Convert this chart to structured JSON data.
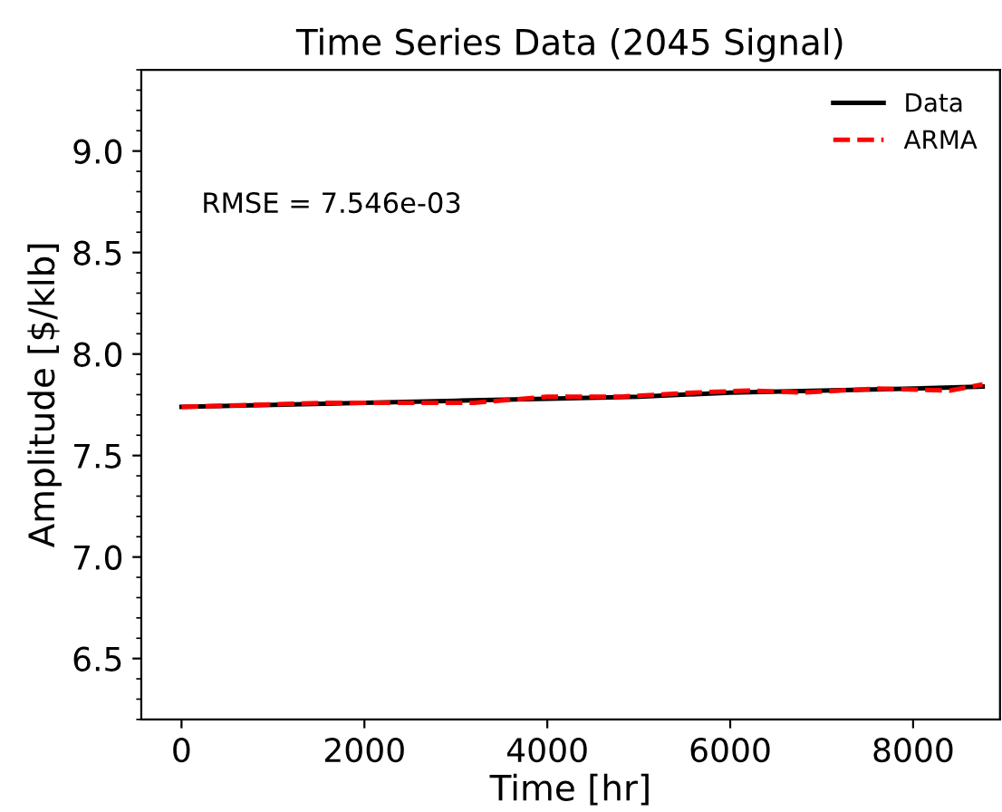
{
  "chart_data": {
    "type": "line",
    "title": "Time Series Data (2045 Signal)",
    "xlabel": "Time [hr]",
    "ylabel": "Amplitude [$/klb]",
    "xlim": [
      -440,
      8950
    ],
    "ylim": [
      6.2,
      9.4
    ],
    "xticks": [
      0,
      2000,
      4000,
      6000,
      8000
    ],
    "yticks": [
      {
        "value": 6.5,
        "label": "6.5"
      },
      {
        "value": 7,
        "label": "7.0"
      },
      {
        "value": 7.5,
        "label": "7.5"
      },
      {
        "value": 8,
        "label": "8.0"
      },
      {
        "value": 8.5,
        "label": "8.5"
      },
      {
        "value": 9,
        "label": "9.0"
      }
    ],
    "legend": "top right",
    "grid": false,
    "annotations": [
      "RMSE = 7.546e-03"
    ],
    "series": [
      {
        "name": "Data",
        "color": "#000000",
        "line_style": "solid",
        "x": [
          0,
          1000,
          2000,
          3000,
          4000,
          5000,
          6000,
          7000,
          8000,
          8760
        ],
        "values": [
          7.74,
          7.75,
          7.76,
          7.77,
          7.78,
          7.79,
          7.81,
          7.82,
          7.83,
          7.84
        ]
      },
      {
        "name": "ARMA",
        "color": "#ff0000",
        "line_style": "dashed",
        "x": [
          0,
          800,
          1600,
          2400,
          3200,
          4000,
          4800,
          5600,
          6200,
          6800,
          7600,
          8400,
          8760
        ],
        "values": [
          7.74,
          7.75,
          7.76,
          7.76,
          7.76,
          7.79,
          7.79,
          7.81,
          7.82,
          7.81,
          7.83,
          7.82,
          7.85
        ]
      }
    ]
  }
}
